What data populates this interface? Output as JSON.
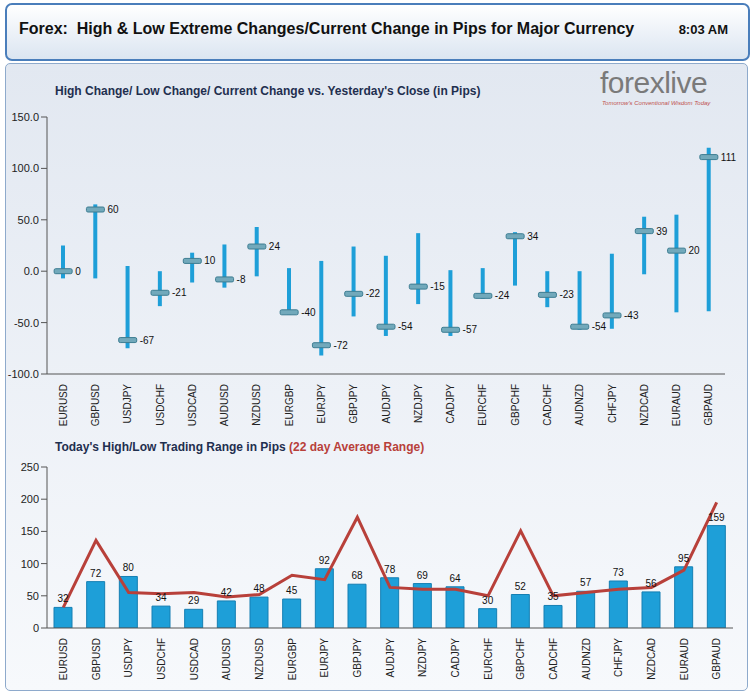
{
  "header": {
    "title": "Forex:  High & Low Extreme Changes/Current Change in Pips for Major Currency",
    "time": "8:03 AM"
  },
  "logo": {
    "name": "forexlive",
    "tagline": "Tomorrow's Conventional Wisdom Today"
  },
  "chart_data": [
    {
      "type": "range",
      "title": "High Change/ Low Change/ Current Change vs. Yesterday's Close (in Pips)",
      "categories": [
        "EURUSD",
        "GBPUSD",
        "USDJPY",
        "USDCHF",
        "USDCAD",
        "AUDUSD",
        "NZDUSD",
        "EURGBP",
        "EURJPY",
        "GBPJPY",
        "AUDJPY",
        "NZDJPY",
        "CADJPY",
        "EURCHF",
        "GBPCHF",
        "CADCHF",
        "AUDNZD",
        "CHFJPY",
        "NZDCAD",
        "EURAUD",
        "GBPAUD"
      ],
      "high": [
        25,
        65,
        5,
        0,
        18,
        26,
        43,
        3,
        10,
        24,
        15,
        37,
        1,
        3,
        38,
        0,
        0,
        17,
        53,
        55,
        120
      ],
      "low": [
        -7,
        -7,
        -75,
        -34,
        -11,
        -16,
        -5,
        -42,
        -82,
        -44,
        -63,
        -32,
        -63,
        -27,
        -14,
        -35,
        -57,
        -56,
        -3,
        -40,
        -39
      ],
      "values": [
        0,
        60,
        -67,
        -21,
        10,
        -8,
        24,
        -40,
        -72,
        -22,
        -54,
        -15,
        -57,
        -24,
        34,
        -23,
        -54,
        -43,
        39,
        20,
        111
      ],
      "color": "#1e9fd8",
      "marker": "dash",
      "data_labels": true,
      "ylim": [
        -100,
        150
      ],
      "yticks": [
        {
          "value": -100,
          "label": "-100.0"
        },
        {
          "value": -50,
          "label": "-50.0"
        },
        {
          "value": 0,
          "label": "0.0"
        },
        {
          "value": 50,
          "label": "50.0"
        },
        {
          "value": 100,
          "label": "100.0"
        },
        {
          "value": 150,
          "label": "150.0"
        }
      ],
      "grid": false
    },
    {
      "type": "bar",
      "categories": [
        "EURUSD",
        "GBPUSD",
        "USDJPY",
        "USDCHF",
        "USDCAD",
        "AUDUSD",
        "NZDUSD",
        "EURGBP",
        "EURJPY",
        "GBPJPY",
        "AUDJPY",
        "NZDJPY",
        "CADJPY",
        "EURCHF",
        "GBPCHF",
        "CADCHF",
        "AUDNZD",
        "CHFJPY",
        "NZDCAD",
        "EURAUD",
        "GBPAUD"
      ],
      "series": [
        {
          "name": "Today's High/Low Trading Range in Pips",
          "type": "bar",
          "color": "#1e9fd8",
          "data_labels": true,
          "values": [
            32,
            72,
            80,
            34,
            29,
            42,
            48,
            45,
            92,
            68,
            78,
            69,
            64,
            30,
            52,
            35,
            57,
            73,
            56,
            95,
            159
          ]
        },
        {
          "name": "(22 day Average Range)",
          "type": "line",
          "color": "#b8403a",
          "values": [
            32,
            136,
            55,
            53,
            55,
            48,
            52,
            82,
            75,
            172,
            63,
            60,
            60,
            50,
            151,
            50,
            55,
            60,
            63,
            90,
            195
          ]
        }
      ],
      "ylim": [
        0,
        250
      ],
      "yticks": [
        0,
        50,
        100,
        150,
        200,
        250
      ],
      "grid": false
    }
  ]
}
